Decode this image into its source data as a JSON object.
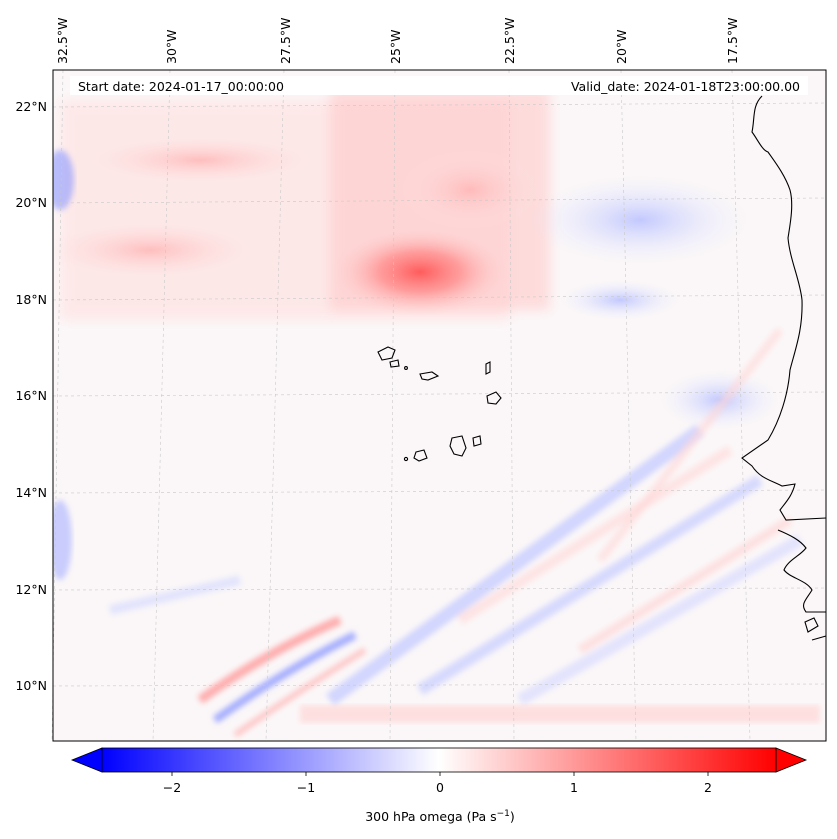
{
  "header": {
    "start_date": "Start date: 2024-01-17_00:00:00",
    "valid_date": "Valid_date: 2024-01-18T23:00:00.00"
  },
  "map": {
    "lon_ticks": [
      "32.5°W",
      "30°W",
      "27.5°W",
      "25°W",
      "22.5°W",
      "20°W",
      "17.5°W"
    ],
    "lat_ticks": [
      "22°N",
      "20°N",
      "18°N",
      "16°N",
      "14°N",
      "12°N",
      "10°N"
    ],
    "gridlines": true,
    "coastline_color": "#000000",
    "field_colormap": "bwr"
  },
  "colorbar": {
    "ticks": [
      "−2",
      "−1",
      "0",
      "1",
      "2"
    ],
    "label_main": "300 hPa omega (Pa s",
    "label_sup": "−1",
    "label_close": ")",
    "extend": "both",
    "min_color": "#0000ff",
    "mid_color": "#ffffff",
    "max_color": "#ff0000"
  }
}
